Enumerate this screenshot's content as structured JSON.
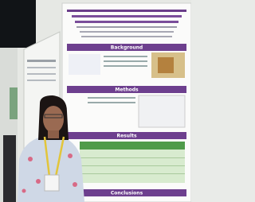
{
  "poster": {
    "sections": [
      "Background",
      "Methods",
      "Results",
      "Conclusions"
    ]
  }
}
